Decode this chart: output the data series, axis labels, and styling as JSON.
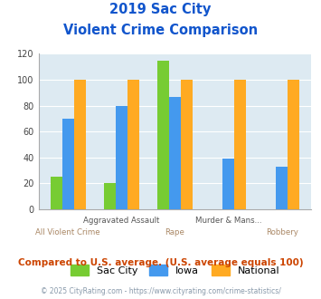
{
  "title_line1": "2019 Sac City",
  "title_line2": "Violent Crime Comparison",
  "categories": [
    "All Violent Crime",
    "Aggravated Assault",
    "Rape",
    "Murder & Mans...",
    "Robbery"
  ],
  "sac_city": [
    25,
    20,
    115,
    null,
    null
  ],
  "iowa": [
    70,
    80,
    87,
    39,
    33
  ],
  "national": [
    100,
    100,
    100,
    100,
    100
  ],
  "bar_colors": {
    "sac_city": "#77cc33",
    "iowa": "#4499ee",
    "national": "#ffaa22"
  },
  "ylim": [
    0,
    120
  ],
  "yticks": [
    0,
    20,
    40,
    60,
    80,
    100,
    120
  ],
  "bg_color": "#ddeaf2",
  "title_color": "#1155cc",
  "footer_text": "Compared to U.S. average. (U.S. average equals 100)",
  "footer_color": "#cc4400",
  "credit_text": "© 2025 CityRating.com - https://www.cityrating.com/crime-statistics/",
  "credit_color": "#8899aa",
  "legend_labels": [
    "Sac City",
    "Iowa",
    "National"
  ],
  "top_xlabels": [
    "",
    "Aggravated Assault",
    "",
    "Murder & Mans...",
    ""
  ],
  "bot_xlabels": [
    "All Violent Crime",
    "",
    "Rape",
    "",
    "Robbery"
  ]
}
